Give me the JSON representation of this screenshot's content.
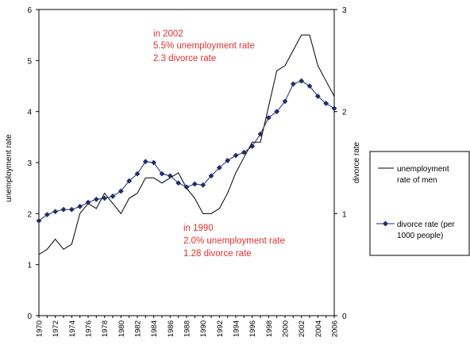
{
  "chart_data": {
    "type": "line",
    "title": "",
    "ylabel": "unemployment rate",
    "y2label": "divorce rate",
    "xlabel": "",
    "ylim": [
      0,
      6
    ],
    "y2lim": [
      0,
      3
    ],
    "yticks": [
      "0",
      "1",
      "2",
      "3",
      "4",
      "5",
      "6"
    ],
    "y2ticks": [
      "0",
      "1",
      "2",
      "3"
    ],
    "grid": false,
    "legend_position": "right",
    "x": [
      1970,
      1971,
      1972,
      1973,
      1974,
      1975,
      1976,
      1977,
      1978,
      1979,
      1980,
      1981,
      1982,
      1983,
      1984,
      1985,
      1986,
      1987,
      1988,
      1989,
      1990,
      1991,
      1992,
      1993,
      1994,
      1995,
      1996,
      1997,
      1998,
      1999,
      2000,
      2001,
      2002,
      2003,
      2004,
      2005,
      2006
    ],
    "xtick_labels": [
      "1970",
      "1972",
      "1974",
      "1976",
      "1978",
      "1980",
      "1982",
      "1984",
      "1986",
      "1988",
      "1990",
      "1992",
      "1994",
      "1996",
      "1998",
      "2000",
      "2002",
      "2004",
      "2006"
    ],
    "series": [
      {
        "name": "unemployment rate of men",
        "axis": "left",
        "marker": "none",
        "color": "#000000",
        "values": [
          1.2,
          1.3,
          1.5,
          1.3,
          1.4,
          2.0,
          2.2,
          2.1,
          2.4,
          2.2,
          2.0,
          2.3,
          2.4,
          2.7,
          2.7,
          2.6,
          2.7,
          2.8,
          2.5,
          2.3,
          2.0,
          2.0,
          2.1,
          2.4,
          2.8,
          3.1,
          3.4,
          3.4,
          4.1,
          4.8,
          4.9,
          5.2,
          5.5,
          5.5,
          4.9,
          4.6,
          4.3
        ]
      },
      {
        "name": "divorce rate (per 1000 people)",
        "axis": "right",
        "marker": "diamond",
        "color": "#1f2d6e",
        "values": [
          0.93,
          0.99,
          1.02,
          1.04,
          1.04,
          1.07,
          1.11,
          1.14,
          1.15,
          1.17,
          1.22,
          1.32,
          1.39,
          1.51,
          1.5,
          1.39,
          1.37,
          1.3,
          1.26,
          1.29,
          1.28,
          1.37,
          1.45,
          1.52,
          1.57,
          1.6,
          1.66,
          1.78,
          1.94,
          2.0,
          2.1,
          2.27,
          2.3,
          2.25,
          2.15,
          2.08,
          2.03
        ]
      }
    ],
    "annotations": [
      {
        "lines": [
          "in 2002",
          "5.5% unemployment rate",
          "2.3 divorce rate"
        ],
        "color": "#e03030"
      },
      {
        "lines": [
          "in 1990",
          "2.0% unemployment rate",
          "1.28 divorce rate"
        ],
        "color": "#e03030"
      }
    ],
    "legend": {
      "entries": [
        {
          "lines": [
            "unemployment",
            "rate of men"
          ]
        },
        {
          "lines": [
            "divorce rate (per",
            "1000 people)"
          ]
        }
      ]
    }
  }
}
